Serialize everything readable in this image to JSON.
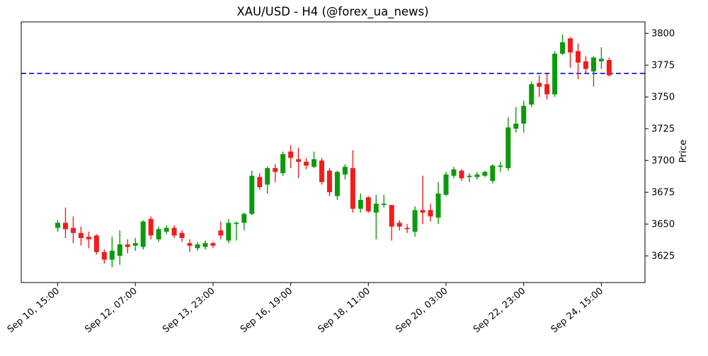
{
  "chart_data": {
    "type": "candlestick",
    "title": "XAU/USD - H4 (@forex_ua_news)",
    "ylabel": "Price",
    "xlabel": "",
    "grid": false,
    "legend": "none",
    "ylim": [
      3604,
      3809
    ],
    "yticks": [
      3625,
      3650,
      3675,
      3700,
      3725,
      3750,
      3775,
      3800
    ],
    "xticks": [
      {
        "index": 0,
        "label": "Sep 10, 15:00"
      },
      {
        "index": 10,
        "label": "Sep 12, 07:00"
      },
      {
        "index": 20,
        "label": "Sep 13, 23:00"
      },
      {
        "index": 30,
        "label": "Sep 16, 19:00"
      },
      {
        "index": 40,
        "label": "Sep 18, 11:00"
      },
      {
        "index": 50,
        "label": "Sep 20, 03:00"
      },
      {
        "index": 60,
        "label": "Sep 22, 23:00"
      },
      {
        "index": 70,
        "label": "Sep 24, 15:00"
      }
    ],
    "hline": {
      "value": 3768.5,
      "color": "#0000ff",
      "style": "dashed"
    },
    "colors": {
      "up": "#0c9a0c",
      "down": "#f31b1b",
      "axis": "#000000",
      "background": "#ffffff"
    },
    "ohlc_format": [
      "open",
      "high",
      "low",
      "close"
    ],
    "ohlc": [
      [
        3647,
        3653,
        3644,
        3651
      ],
      [
        3651,
        3663,
        3639,
        3646
      ],
      [
        3647,
        3656,
        3635,
        3643
      ],
      [
        3643,
        3648,
        3633,
        3639
      ],
      [
        3640,
        3644,
        3631,
        3638
      ],
      [
        3641,
        3642,
        3626,
        3628
      ],
      [
        3628,
        3630,
        3619,
        3622
      ],
      [
        3622,
        3640,
        3616,
        3629
      ],
      [
        3625,
        3645,
        3618,
        3634
      ],
      [
        3634,
        3638,
        3627,
        3632
      ],
      [
        3633,
        3639,
        3629,
        3635
      ],
      [
        3632,
        3653,
        3630,
        3652
      ],
      [
        3654,
        3656,
        3638,
        3641
      ],
      [
        3638,
        3648,
        3636,
        3646
      ],
      [
        3644,
        3649,
        3642,
        3647
      ],
      [
        3647,
        3649,
        3639,
        3641
      ],
      [
        3643,
        3645,
        3636,
        3639
      ],
      [
        3635,
        3638,
        3628,
        3633
      ],
      [
        3631,
        3636,
        3629,
        3634
      ],
      [
        3632,
        3637,
        3630,
        3635
      ],
      [
        3635,
        3636,
        3631,
        3633
      ],
      [
        3645,
        3652,
        3638,
        3641
      ],
      [
        3637,
        3654,
        3635,
        3651
      ],
      [
        3650,
        3652,
        3637,
        3651
      ],
      [
        3651,
        3659,
        3645,
        3658
      ],
      [
        3658,
        3692,
        3657,
        3688
      ],
      [
        3687,
        3690,
        3677,
        3679
      ],
      [
        3681,
        3695,
        3674,
        3694
      ],
      [
        3694,
        3697,
        3683,
        3691
      ],
      [
        3690,
        3707,
        3688,
        3705
      ],
      [
        3707,
        3712,
        3694,
        3702
      ],
      [
        3701,
        3710,
        3686,
        3699
      ],
      [
        3699,
        3702,
        3693,
        3696
      ],
      [
        3695,
        3707,
        3694,
        3701
      ],
      [
        3700,
        3702,
        3681,
        3683
      ],
      [
        3692,
        3694,
        3672,
        3675
      ],
      [
        3672,
        3692,
        3669,
        3691
      ],
      [
        3689,
        3697,
        3685,
        3695
      ],
      [
        3694,
        3708,
        3659,
        3662
      ],
      [
        3662,
        3674,
        3659,
        3669
      ],
      [
        3671,
        3672,
        3659,
        3660
      ],
      [
        3659,
        3673,
        3638,
        3666
      ],
      [
        3665,
        3673,
        3663,
        3666
      ],
      [
        3665,
        3665,
        3637,
        3648
      ],
      [
        3651,
        3653,
        3645,
        3648
      ],
      [
        3647,
        3650,
        3643,
        3646
      ],
      [
        3644,
        3664,
        3640,
        3661
      ],
      [
        3661,
        3688,
        3650,
        3659
      ],
      [
        3661,
        3666,
        3652,
        3656
      ],
      [
        3655,
        3683,
        3650,
        3674
      ],
      [
        3673,
        3691,
        3672,
        3689
      ],
      [
        3688,
        3695,
        3686,
        3693
      ],
      [
        3692,
        3693,
        3684,
        3686
      ],
      [
        3687,
        3690,
        3683,
        3688
      ],
      [
        3687,
        3691,
        3685,
        3689
      ],
      [
        3688,
        3692,
        3687,
        3691
      ],
      [
        3684,
        3697,
        3682,
        3696
      ],
      [
        3695,
        3699,
        3691,
        3696
      ],
      [
        3694,
        3734,
        3692,
        3726
      ],
      [
        3725,
        3742,
        3722,
        3729
      ],
      [
        3729,
        3747,
        3722,
        3743
      ],
      [
        3744,
        3762,
        3742,
        3760
      ],
      [
        3761,
        3767,
        3750,
        3758
      ],
      [
        3760,
        3768,
        3748,
        3752
      ],
      [
        3752,
        3786,
        3750,
        3784
      ],
      [
        3784,
        3799,
        3783,
        3793
      ],
      [
        3796,
        3797,
        3773,
        3785
      ],
      [
        3786,
        3792,
        3764,
        3777
      ],
      [
        3778,
        3782,
        3769,
        3772
      ],
      [
        3770,
        3782,
        3758,
        3781
      ],
      [
        3778,
        3789,
        3772,
        3780
      ],
      [
        3779,
        3781,
        3766,
        3767
      ]
    ]
  }
}
